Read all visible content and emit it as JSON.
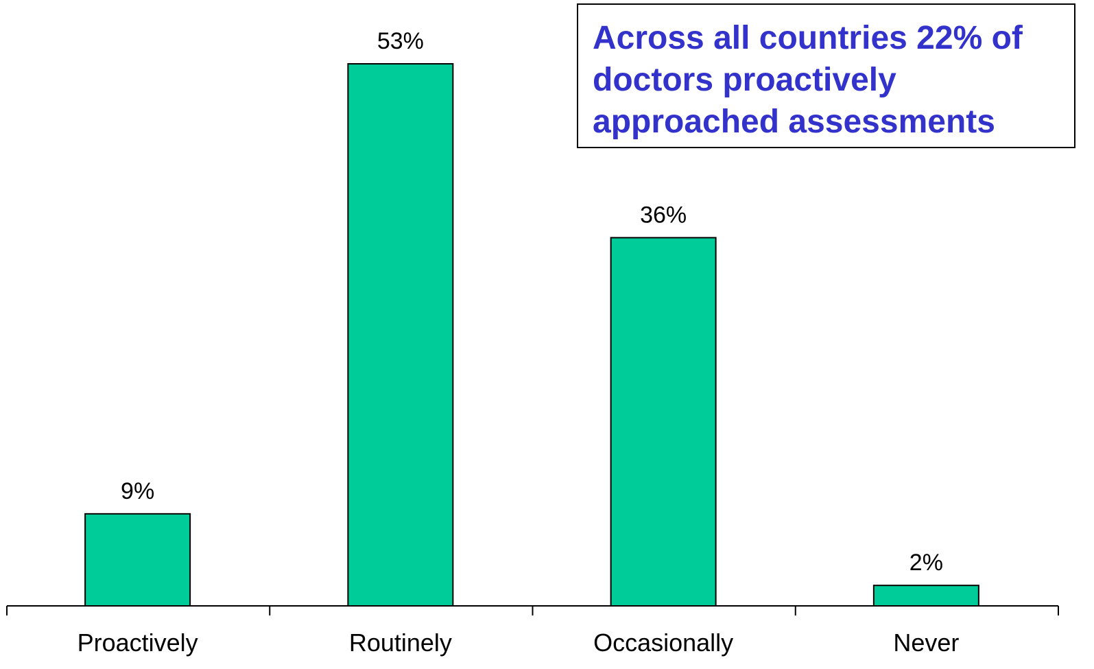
{
  "chart_data": {
    "type": "bar",
    "categories": [
      "Proactively",
      "Routinely",
      "Occasionally",
      "Never"
    ],
    "values": [
      9,
      53,
      36,
      2
    ],
    "value_labels": [
      "9%",
      "53%",
      "36%",
      "2%"
    ],
    "ylim": [
      0,
      53
    ],
    "bar_color": "#00CC99",
    "grid": false,
    "annotation": {
      "lines": [
        "Across all countries 22% of",
        "doctors proactively",
        "approached assessments"
      ],
      "color": "#3333CC"
    }
  }
}
